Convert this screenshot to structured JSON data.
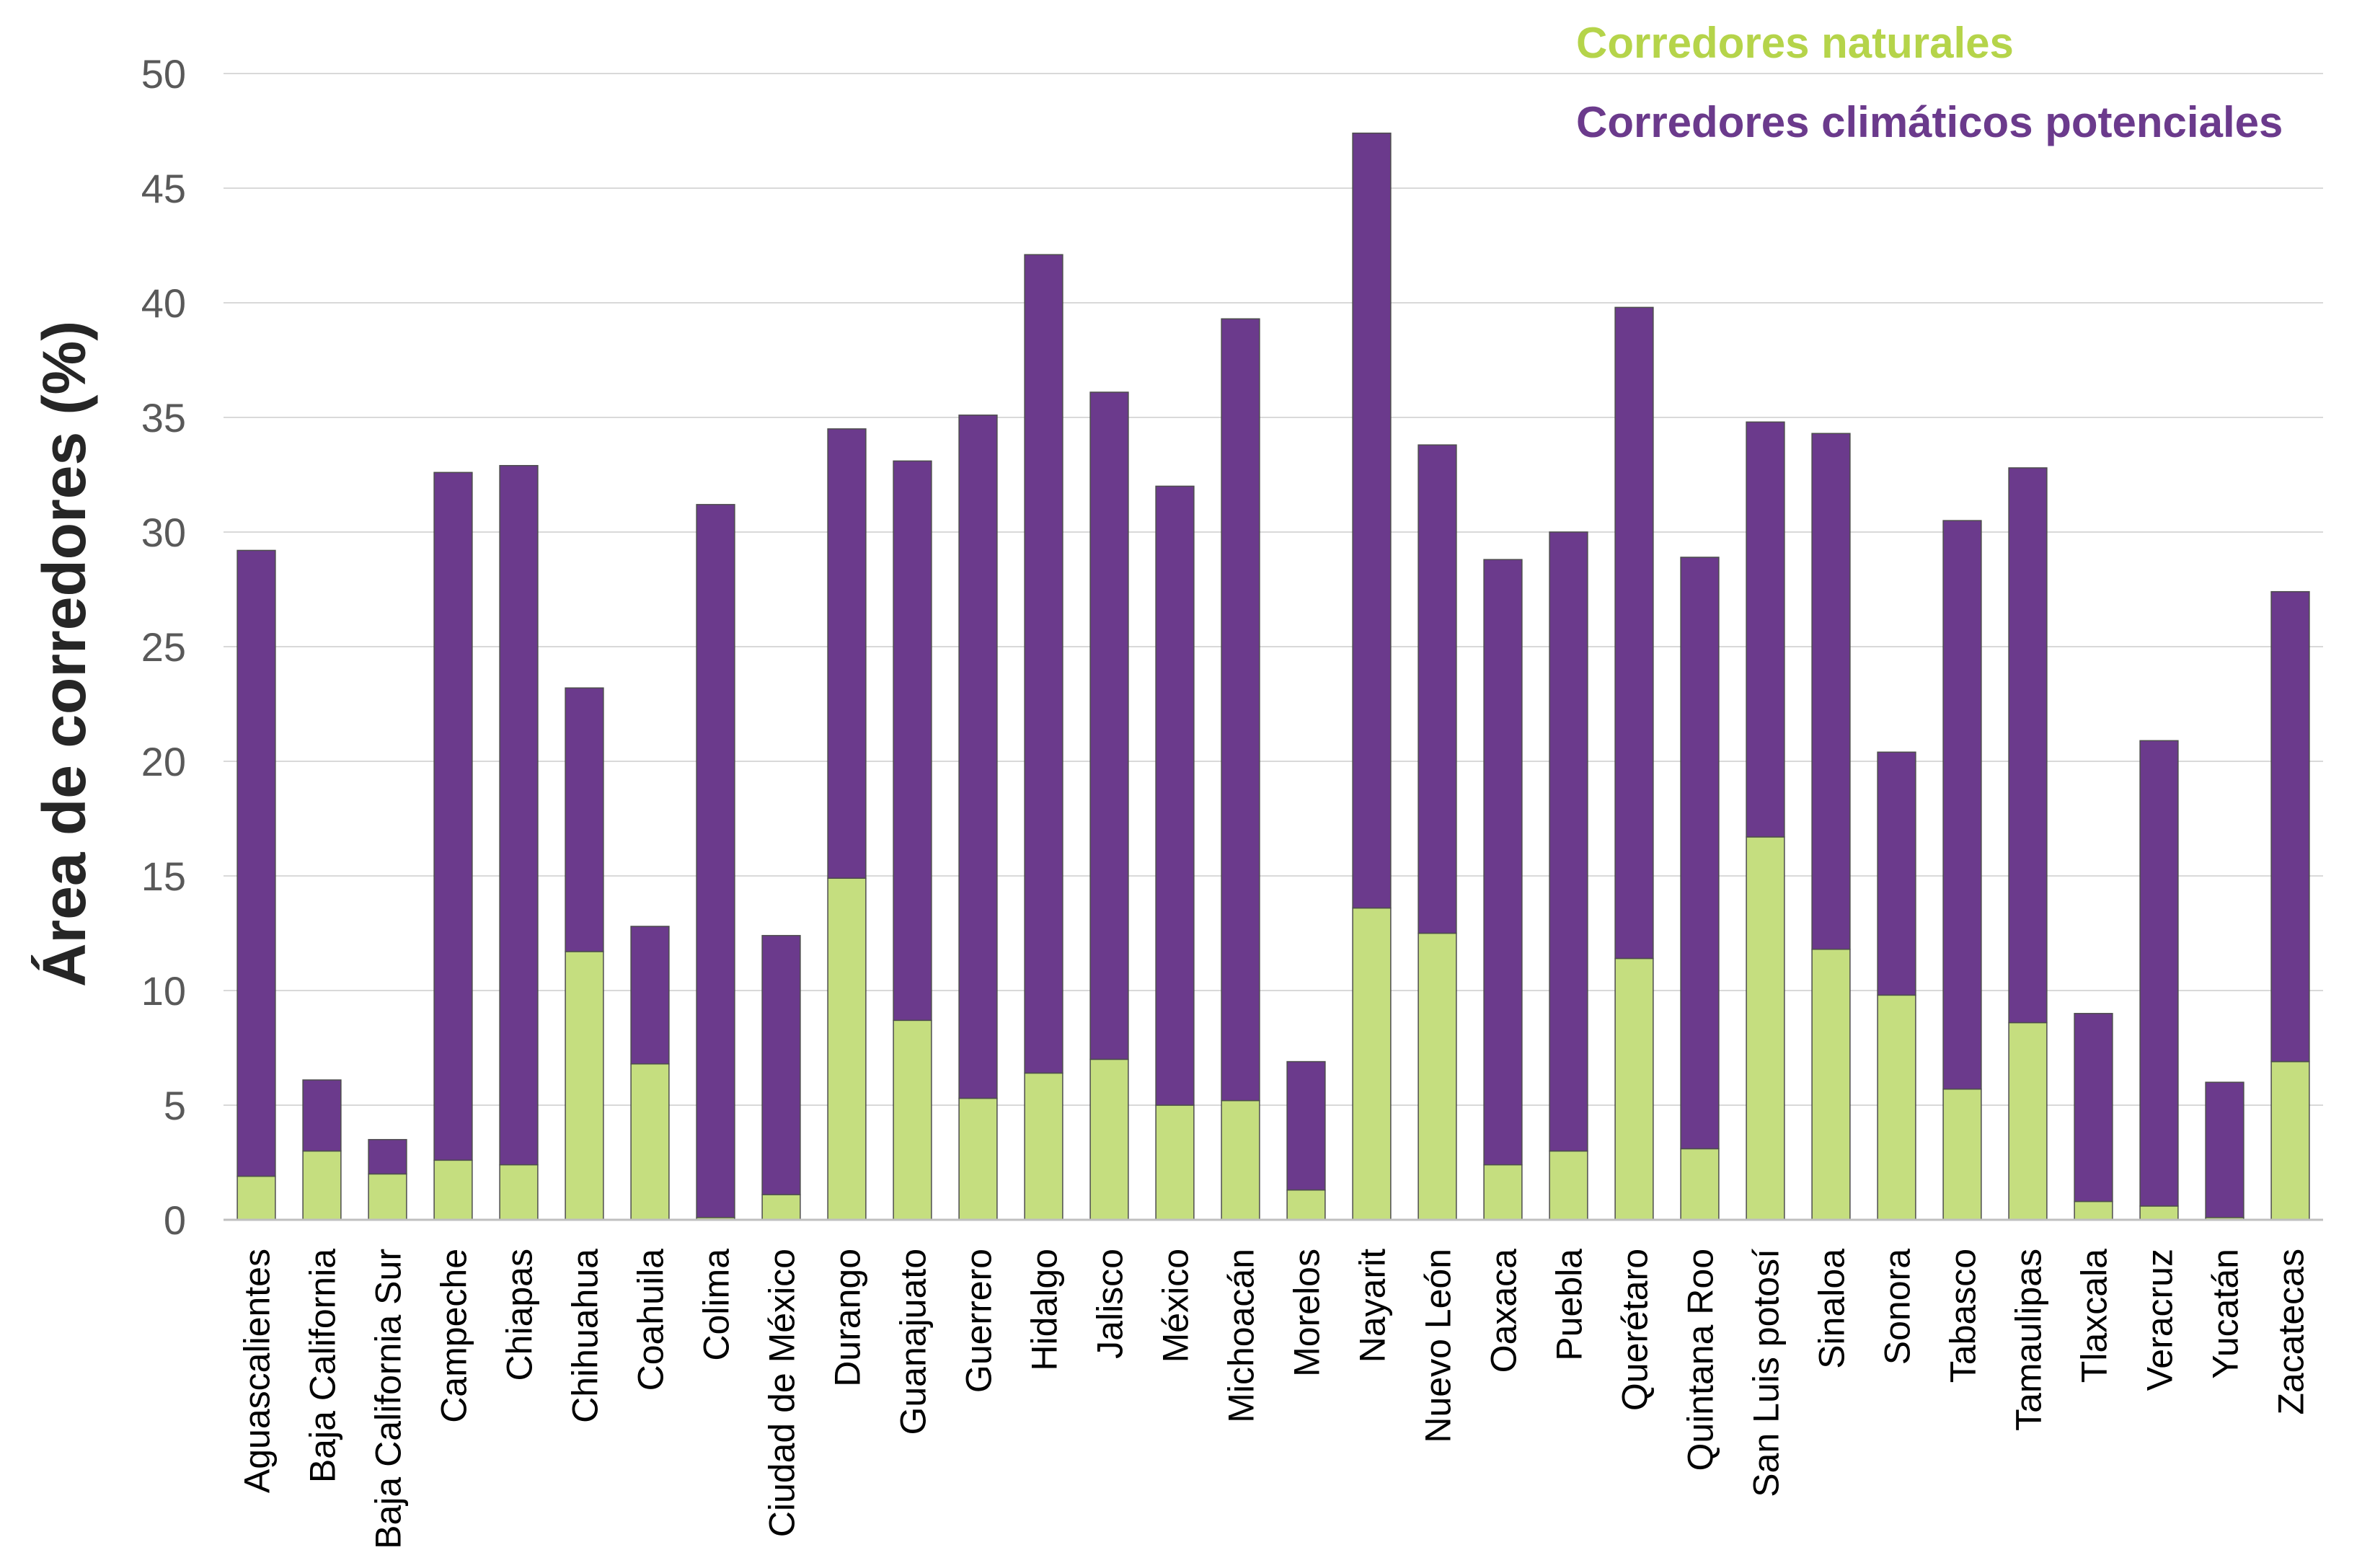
{
  "chart_data": {
    "type": "bar",
    "stacked": true,
    "ylabel": "Área de corredores (%)",
    "xlabel": "",
    "ylim": [
      0,
      50
    ],
    "yticks": [
      0,
      5,
      10,
      15,
      20,
      25,
      30,
      35,
      40,
      45,
      50
    ],
    "yticks_text": [
      "0",
      "5",
      "10",
      "15",
      "20",
      "25",
      "30",
      "35",
      "40",
      "45",
      "50"
    ],
    "grid": true,
    "legend_position": "top-right",
    "categories": [
      "Aguascalientes",
      "Baja California",
      "Baja California Sur",
      "Campeche",
      "Chiapas",
      "Chihuahua",
      "Coahuila",
      "Colima",
      "Ciudad de México",
      "Durango",
      "Guanajuato",
      "Guerrero",
      "Hidalgo",
      "Jalisco",
      "México",
      "Michoacán",
      "Morelos",
      "Nayarit",
      "Nuevo León",
      "Oaxaca",
      "Puebla",
      "Querétaro",
      "Quintana Roo",
      "San Luis potosí",
      "Sinaloa",
      "Sonora",
      "Tabasco",
      "Tamaulipas",
      "Tlaxcala",
      "Veracruz",
      "Yucatán",
      "Zacatecas"
    ],
    "series": [
      {
        "name": "Corredores naturales",
        "color": "#c5de7f",
        "values": [
          1.9,
          3.0,
          2.0,
          2.6,
          2.4,
          11.7,
          6.8,
          0.1,
          1.1,
          14.9,
          8.7,
          5.3,
          6.4,
          7.0,
          5.0,
          5.2,
          1.3,
          13.6,
          12.5,
          2.4,
          3.0,
          11.4,
          3.1,
          16.7,
          11.8,
          9.8,
          5.7,
          8.6,
          0.8,
          0.6,
          0.1,
          6.9
        ]
      },
      {
        "name": "Corredores climáticos potenciales",
        "color": "#6b3a8c",
        "values": [
          27.3,
          3.1,
          1.5,
          30.0,
          30.5,
          11.5,
          6.0,
          31.1,
          11.3,
          19.6,
          24.4,
          29.8,
          35.7,
          29.1,
          27.0,
          34.1,
          5.6,
          33.8,
          21.3,
          26.4,
          27.0,
          28.4,
          25.8,
          18.1,
          22.5,
          10.6,
          24.8,
          24.2,
          8.2,
          20.3,
          5.9,
          20.5
        ]
      }
    ]
  }
}
